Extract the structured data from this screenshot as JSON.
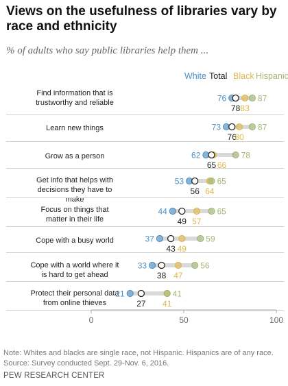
{
  "title": "Views on the usefulness of libraries vary by race and ethnicity",
  "subtitle": "% of adults who say public libraries help them ...",
  "colors": {
    "White": "#4a90c8",
    "Total": "#222222",
    "Black": "#e0b74a",
    "Hispanic": "#a3b774",
    "bar": "#d9d9d9"
  },
  "legend": [
    "White",
    "Total",
    "Black",
    "Hispanic"
  ],
  "chart_data": {
    "type": "dot",
    "xlim": [
      0,
      100
    ],
    "xticks": [
      0,
      50,
      100
    ],
    "series_names": [
      "White",
      "Total",
      "Black",
      "Hispanic"
    ],
    "rows": [
      {
        "label": "Find information that is trustworthy and reliable",
        "White": 76,
        "Total": 78,
        "Black": 83,
        "Hispanic": 87
      },
      {
        "label": "Learn new things",
        "White": 73,
        "Total": 76,
        "Black": 80,
        "Hispanic": 87
      },
      {
        "label": "Grow as a person",
        "White": 62,
        "Total": 65,
        "Black": 66,
        "Hispanic": 78
      },
      {
        "label": "Get info that helps with decisions they have to make",
        "White": 53,
        "Total": 56,
        "Black": 64,
        "Hispanic": 65
      },
      {
        "label": "Focus on things that matter in their life",
        "White": 44,
        "Total": 49,
        "Black": 57,
        "Hispanic": 65
      },
      {
        "label": "Cope with a busy world",
        "White": 37,
        "Total": 43,
        "Black": 49,
        "Hispanic": 59
      },
      {
        "label": "Cope with a world where it is hard to get ahead",
        "White": 33,
        "Total": 38,
        "Black": 47,
        "Hispanic": 56
      },
      {
        "label": "Protect their personal data from online thieves",
        "White": 21,
        "Total": 27,
        "Black": 41,
        "Hispanic": 41
      }
    ]
  },
  "note": "Note: Whites and blacks are single race, not Hispanic. Hispanics are of any race.",
  "source": "Source: Survey conducted Sept. 29-Nov. 6, 2016.",
  "organization": "PEW RESEARCH CENTER"
}
